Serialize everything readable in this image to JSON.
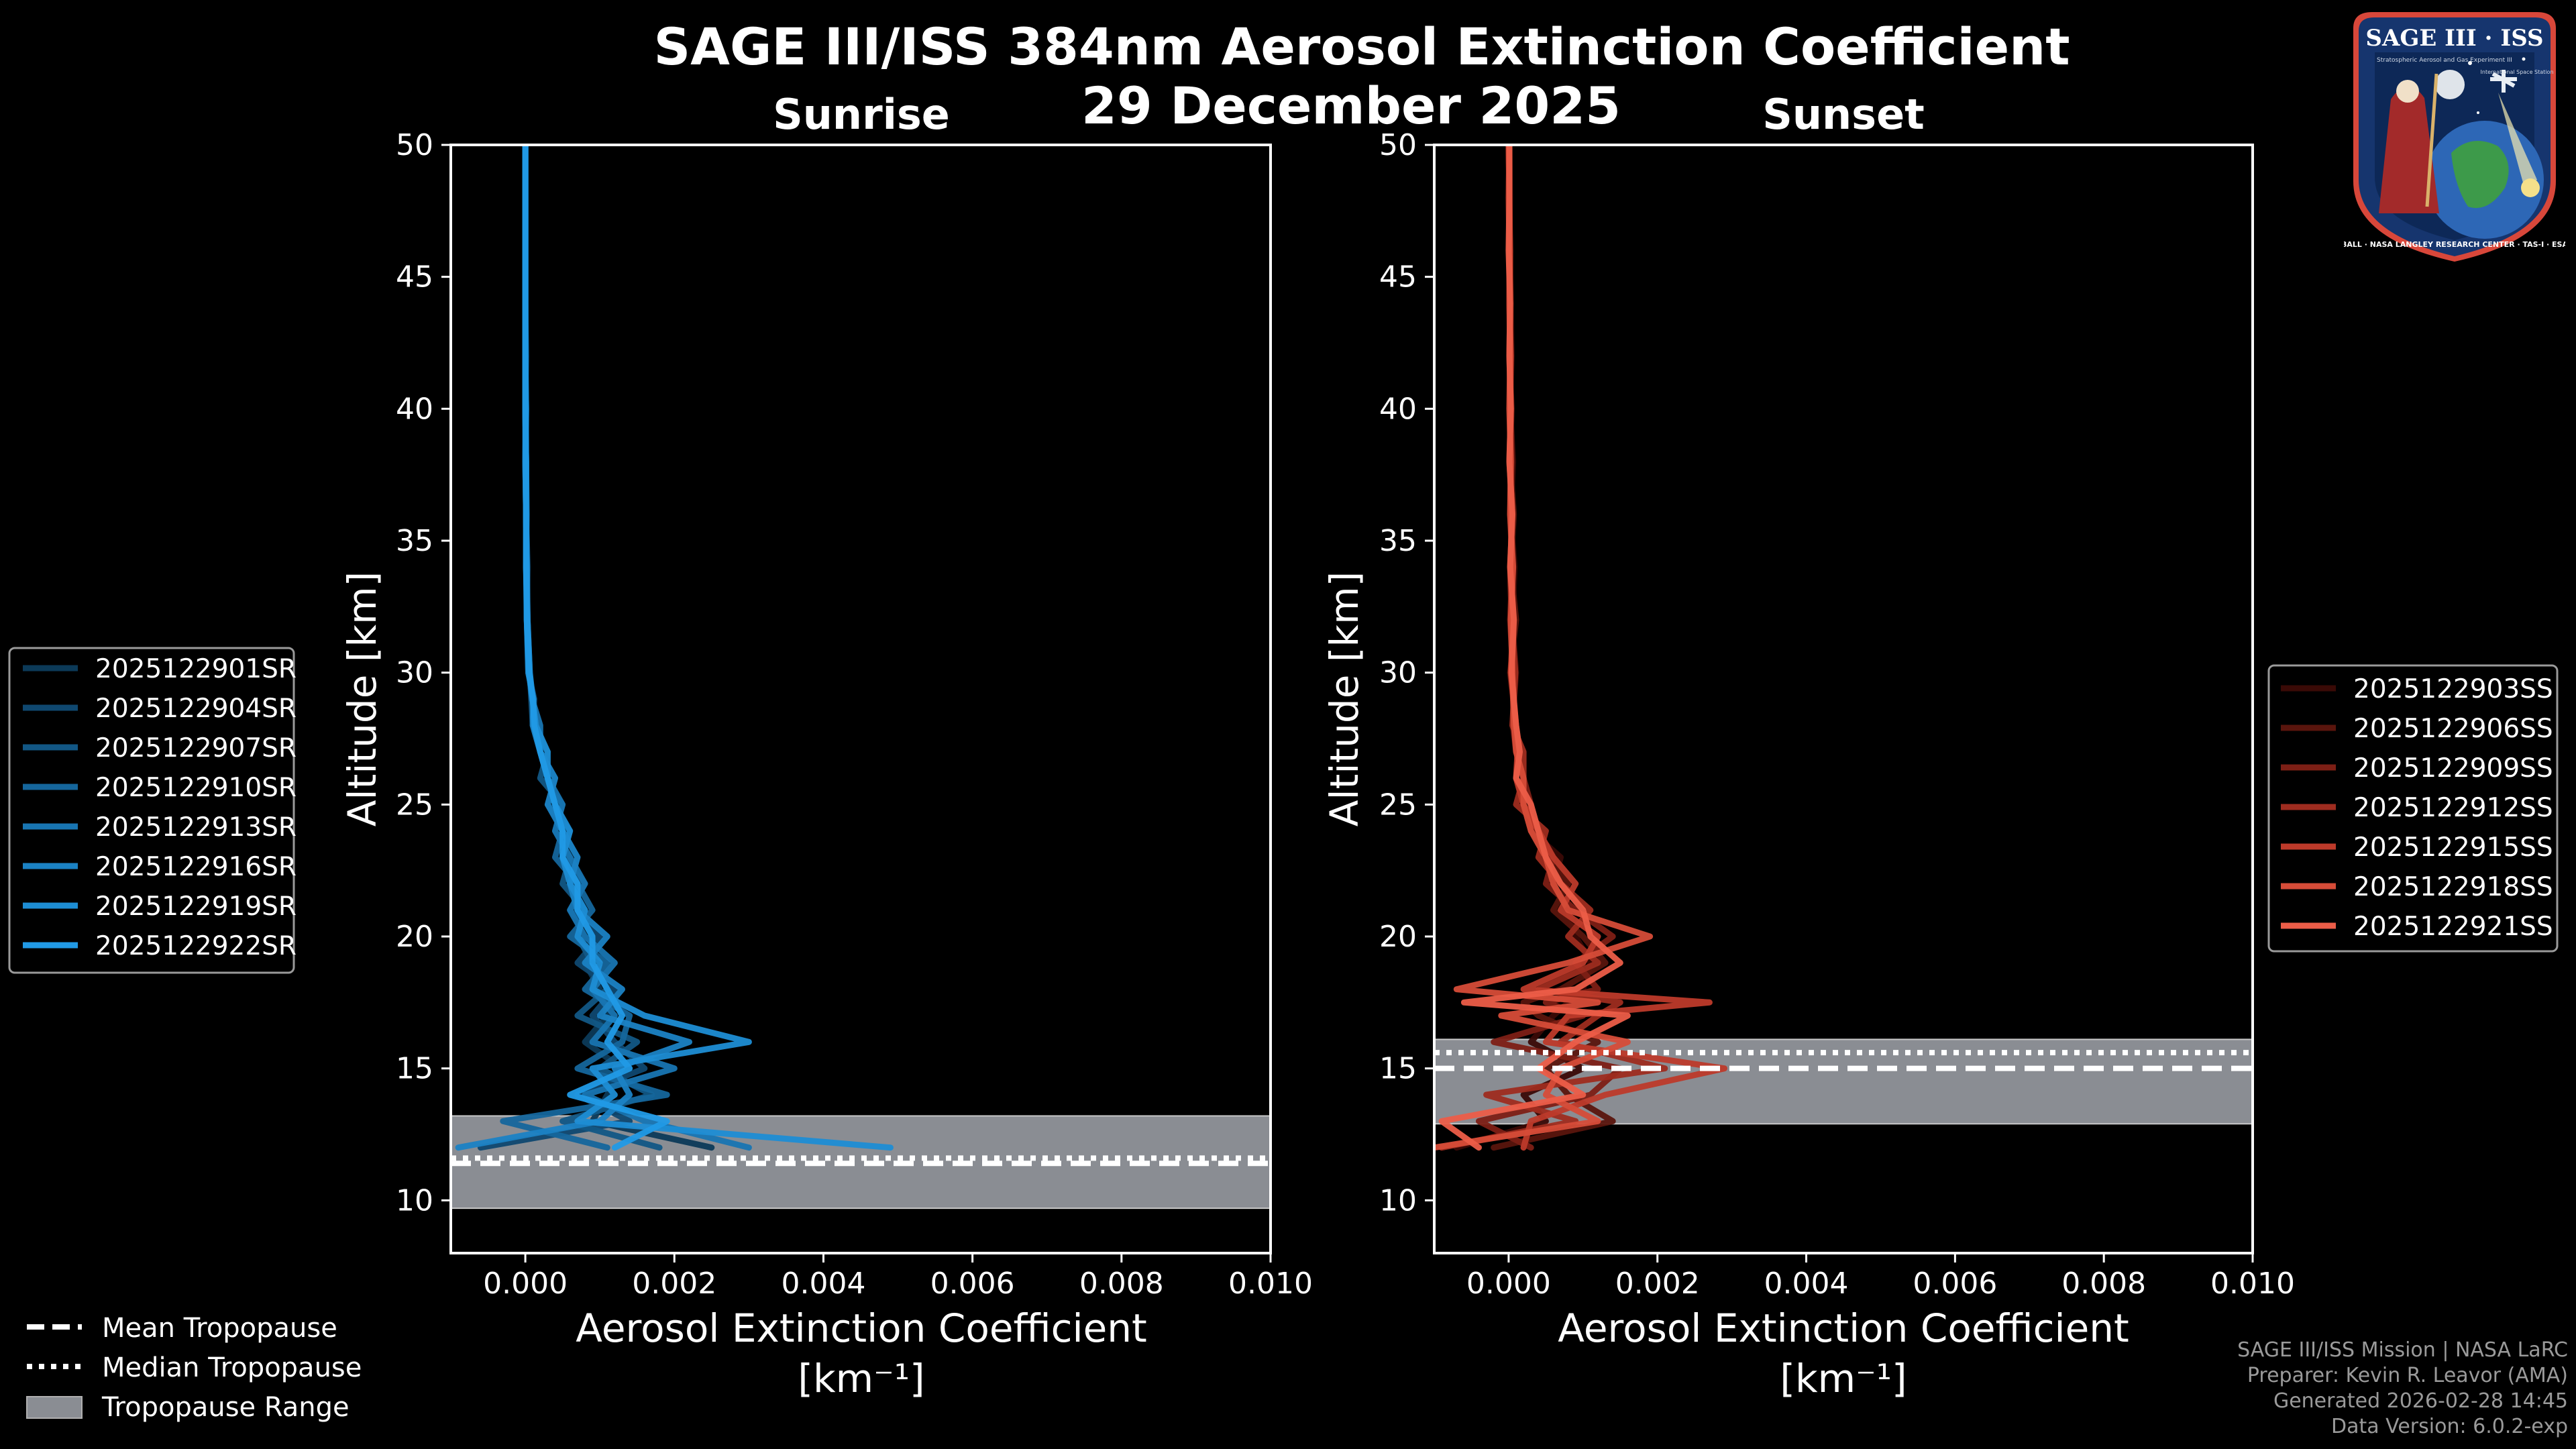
{
  "title": {
    "line1": "SAGE III/ISS 384nm Aerosol Extinction Coefficient",
    "line2": "29 December 2025"
  },
  "logo": {
    "name": "SAGE III · ISS",
    "subtitle": "Stratospheric Aerosol and Gas Experiment III",
    "station": "International Space Station",
    "ring_text": "BALL · NASA LANGLEY RESEARCH CENTER · TAS-I · ESA"
  },
  "colors": {
    "background": "#000000",
    "axes": "#ffffff",
    "tropopause_band": "#8a8d93",
    "sunrise_base": "#1e8fd6",
    "sunset_base": "#e8604c"
  },
  "tropo_legend": {
    "mean": "Mean Tropopause",
    "median": "Median Tropopause",
    "range": "Tropopause Range"
  },
  "credits": {
    "line1": "SAGE III/ISS Mission | NASA LaRC",
    "line2": "Preparer: Kevin R. Leavor (AMA)",
    "line3": "Generated 2026-02-28 14:45",
    "line4": "Data Version: 6.0.2-exp"
  },
  "chart_data": [
    {
      "type": "line",
      "panel": "Sunrise",
      "title": "Sunrise",
      "xlabel": "Aerosol Extinction Coefficient",
      "xunit": "[km⁻¹]",
      "ylabel": "Altitude [km]",
      "xlim": [
        -0.001,
        0.01
      ],
      "ylim": [
        8,
        50
      ],
      "xticks": [
        0.0,
        0.002,
        0.004,
        0.006,
        0.008,
        0.01
      ],
      "xtick_labels": [
        "0.000",
        "0.002",
        "0.004",
        "0.006",
        "0.008",
        "0.010"
      ],
      "yticks": [
        10,
        15,
        20,
        25,
        30,
        35,
        40,
        45,
        50
      ],
      "legend_position": "left",
      "tropopause": {
        "mean": 11.4,
        "median": 11.6,
        "range": [
          9.7,
          13.2
        ]
      },
      "altitudes": [
        12,
        13,
        14,
        15,
        16,
        17,
        18,
        19,
        20,
        21,
        22,
        23,
        24,
        25,
        26,
        27,
        28,
        29,
        30,
        32,
        34,
        36,
        38,
        40,
        42,
        44,
        46,
        48,
        50
      ],
      "series": [
        {
          "name": "2025122901SR",
          "color": "#0c3a58",
          "values": [
            0.0025,
            0.0009,
            0.0011,
            0.0013,
            0.0008,
            0.0011,
            0.001,
            0.0008,
            0.0009,
            0.0007,
            0.0006,
            0.0007,
            0.0005,
            0.0004,
            0.0003,
            0.0002,
            0.00015,
            0.0001,
            5e-05,
            3e-05,
            2e-05,
            1e-05,
            1e-05,
            1e-05,
            0.0,
            0.0,
            0.0,
            0.0,
            0.0
          ]
        },
        {
          "name": "2025122904SR",
          "color": "#0f4870",
          "values": [
            -0.0006,
            0.0014,
            0.0007,
            0.0016,
            0.0012,
            0.0009,
            0.0012,
            0.0007,
            0.001,
            0.0006,
            0.0008,
            0.0005,
            0.0006,
            0.0003,
            0.0004,
            0.0002,
            0.0001,
            0.00012,
            4e-05,
            2e-05,
            3e-05,
            1e-05,
            0.0,
            1e-05,
            0.0,
            0.0,
            0.0,
            0.0,
            0.0
          ]
        },
        {
          "name": "2025122907SR",
          "color": "#125785",
          "values": [
            0.0018,
            0.0005,
            0.0017,
            0.001,
            0.0015,
            0.0007,
            0.0011,
            0.0009,
            0.0007,
            0.0008,
            0.0005,
            0.0006,
            0.0004,
            0.0005,
            0.0002,
            0.0003,
            0.0001,
            8e-05,
            6e-05,
            3e-05,
            1e-05,
            2e-05,
            1e-05,
            0.0,
            1e-05,
            0.0,
            0.0,
            0.0,
            0.0
          ]
        },
        {
          "name": "2025122910SR",
          "color": "#15669c",
          "values": [
            0.0011,
            -0.0003,
            0.0019,
            0.0007,
            0.0013,
            0.0014,
            0.0008,
            0.0011,
            0.0006,
            0.0009,
            0.0007,
            0.0004,
            0.0005,
            0.0004,
            0.0003,
            0.0002,
            0.00013,
            0.0001,
            5e-05,
            2e-05,
            2e-05,
            1e-05,
            1e-05,
            0.0,
            0.0,
            0.0,
            0.0,
            0.0,
            0.0
          ]
        },
        {
          "name": "2025122913SR",
          "color": "#1875b2",
          "values": [
            0.003,
            0.0016,
            0.0008,
            0.002,
            0.0009,
            0.0012,
            0.0009,
            0.0012,
            0.0008,
            0.0006,
            0.0008,
            0.0006,
            0.0004,
            0.0005,
            0.0003,
            0.0002,
            0.0002,
            9e-05,
            5e-05,
            3e-05,
            1e-05,
            1e-05,
            0.0,
            0.0,
            0.0,
            0.0,
            0.0,
            0.0,
            0.0
          ]
        },
        {
          "name": "2025122916SR",
          "color": "#1b82c4",
          "values": [
            -0.0009,
            0.001,
            0.0014,
            0.0012,
            0.0022,
            0.001,
            0.0013,
            0.0008,
            0.0011,
            0.0007,
            0.0006,
            0.0007,
            0.0005,
            0.0003,
            0.0004,
            0.0002,
            0.0001,
            0.00011,
            4e-05,
            2e-05,
            2e-05,
            1e-05,
            1e-05,
            0.0,
            0.0,
            0.0,
            0.0,
            0.0,
            0.0
          ]
        },
        {
          "name": "2025122919SR",
          "color": "#1d8dd4",
          "values": [
            0.0049,
            0.0007,
            0.0012,
            0.0009,
            0.003,
            0.0016,
            0.0009,
            0.001,
            0.0007,
            0.0008,
            0.0006,
            0.0005,
            0.0006,
            0.0004,
            0.0003,
            0.0003,
            0.00014,
            0.0001,
            6e-05,
            3e-05,
            2e-05,
            1e-05,
            0.0,
            1e-05,
            0.0,
            0.0,
            0.0,
            0.0,
            0.0
          ]
        },
        {
          "name": "2025122922SR",
          "color": "#219ae6",
          "values": [
            0.0012,
            0.0019,
            0.0006,
            0.0014,
            0.0011,
            0.0013,
            0.0011,
            0.0009,
            0.0009,
            0.0007,
            0.0007,
            0.0005,
            0.0005,
            0.0004,
            0.0003,
            0.0002,
            0.00012,
            0.0001,
            5e-05,
            2e-05,
            1e-05,
            1e-05,
            1e-05,
            0.0,
            0.0,
            0.0,
            0.0,
            0.0,
            0.0
          ]
        }
      ]
    },
    {
      "type": "line",
      "panel": "Sunset",
      "title": "Sunset",
      "xlabel": "Aerosol Extinction Coefficient",
      "xunit": "[km⁻¹]",
      "ylabel": "Altitude [km]",
      "xlim": [
        -0.001,
        0.01
      ],
      "ylim": [
        8,
        50
      ],
      "xticks": [
        0.0,
        0.002,
        0.004,
        0.006,
        0.008,
        0.01
      ],
      "xtick_labels": [
        "0.000",
        "0.002",
        "0.004",
        "0.006",
        "0.008",
        "0.010"
      ],
      "yticks": [
        10,
        15,
        20,
        25,
        30,
        35,
        40,
        45,
        50
      ],
      "legend_position": "right",
      "tropopause": {
        "mean": 15.0,
        "median": 15.6,
        "range": [
          12.9,
          16.1
        ]
      },
      "altitudes": [
        12,
        13,
        14,
        15,
        16,
        17,
        17.5,
        18,
        19,
        20,
        21,
        22,
        23,
        24,
        25,
        26,
        27,
        28,
        30,
        32,
        34,
        36,
        38,
        40,
        42,
        44,
        46,
        48,
        50
      ],
      "series": [
        {
          "name": "2025122903SS",
          "color": "#3a0a06",
          "values": [
            -0.0007,
            0.0005,
            0.0002,
            0.001,
            0.0003,
            0.0006,
            0.0008,
            0.001,
            0.0011,
            0.0009,
            0.0008,
            0.0006,
            0.0007,
            0.0003,
            0.0002,
            0.0002,
            0.0001,
            5e-05,
            0.0001,
            5e-05,
            8e-05,
            3e-05,
            6e-05,
            2e-05,
            4e-05,
            3e-05,
            1e-05,
            2e-05,
            1e-05
          ]
        },
        {
          "name": "2025122906SS",
          "color": "#5a150d",
          "values": [
            -0.0002,
            0.0014,
            0.0008,
            0.0005,
            0.0012,
            0.0004,
            0.0002,
            0.0007,
            0.0013,
            0.001,
            0.0006,
            0.0008,
            0.0005,
            0.0004,
            0.0002,
            0.0001,
            0.00015,
            0.0001,
            2e-05,
            0.0001,
            3e-05,
            7e-05,
            2e-05,
            4e-05,
            1e-05,
            3e-05,
            2e-05,
            0.0,
            1e-05
          ]
        },
        {
          "name": "2025122909SS",
          "color": "#7d1f15",
          "values": [
            0.0003,
            -0.0004,
            0.0011,
            0.0015,
            -0.0002,
            0.001,
            0.0005,
            0.0012,
            0.0009,
            0.0014,
            0.0009,
            0.0005,
            0.0006,
            0.0003,
            0.0003,
            0.0002,
            0.0001,
            8e-05,
            6e-05,
            2e-05,
            5e-05,
            2e-05,
            4e-05,
            3e-05,
            1e-05,
            2e-05,
            1e-05,
            1e-05,
            0.0
          ]
        },
        {
          "name": "2025122912SS",
          "color": "#9e2c1f",
          "values": [
            -0.0009,
            0.0009,
            -0.0003,
            0.0021,
            0.0007,
            0.0012,
            0.0015,
            0.0004,
            0.0012,
            0.0008,
            0.0011,
            0.0007,
            0.0004,
            0.0005,
            0.0001,
            0.0002,
            0.0002,
            5e-05,
            9e-05,
            4e-05,
            2e-05,
            5e-05,
            1e-05,
            3e-05,
            2e-05,
            1e-05,
            1e-05,
            0.0,
            1e-05
          ]
        },
        {
          "name": "2025122915SS",
          "color": "#bd3a2a",
          "values": [
            0.0002,
            0.0003,
            0.0013,
            0.0029,
            0.0005,
            0.0008,
            0.0027,
            0.0002,
            0.001,
            0.0012,
            0.0007,
            0.0009,
            0.0006,
            0.0004,
            0.0002,
            0.0001,
            0.00012,
            0.0001,
            3e-05,
            6e-05,
            3e-05,
            4e-05,
            2e-05,
            2e-05,
            3e-05,
            1e-05,
            2e-05,
            1e-05,
            0.0
          ]
        },
        {
          "name": "2025122918SS",
          "color": "#d64c38",
          "values": [
            -0.001,
            0.0012,
            0.0005,
            0.0007,
            0.0016,
            -0.0001,
            0.0012,
            -0.0007,
            0.0008,
            0.0019,
            0.0008,
            0.0006,
            0.0005,
            0.0003,
            0.0002,
            0.0002,
            0.0001,
            7e-05,
            5e-05,
            3e-05,
            6e-05,
            2e-05,
            3e-05,
            1e-05,
            2e-05,
            2e-05,
            1e-05,
            1e-05,
            1e-05
          ]
        },
        {
          "name": "2025122921SS",
          "color": "#ec5d48",
          "values": [
            -0.0004,
            -0.0009,
            0.001,
            0.0004,
            0.0009,
            0.0016,
            -0.0006,
            0.0009,
            0.0015,
            0.0011,
            0.001,
            0.0007,
            0.0005,
            0.0004,
            0.0003,
            0.0001,
            0.00015,
            0.0001,
            4e-05,
            7e-05,
            2e-05,
            5e-05,
            1e-05,
            3e-05,
            1e-05,
            2e-05,
            0.0,
            1e-05,
            1e-05
          ]
        }
      ]
    }
  ]
}
